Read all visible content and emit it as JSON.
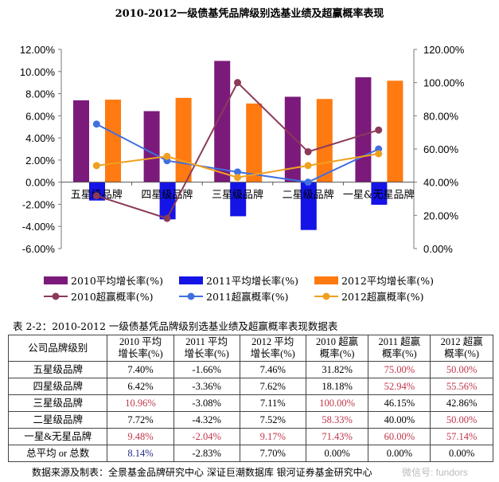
{
  "chart_data": {
    "type": "bar",
    "title": "2010-2012一级债基凭品牌级别选基业绩及超赢概率表现",
    "categories": [
      "五星级品牌",
      "四星级品牌",
      "三星级品牌",
      "二星级品牌",
      "一星&无星品牌"
    ],
    "left_axis": {
      "ylim": [
        -6,
        12
      ],
      "ticks": [
        "12.00%",
        "10.00%",
        "8.00%",
        "6.00%",
        "4.00%",
        "2.00%",
        "0.00%",
        "-2.00%",
        "-4.00%",
        "-6.00%"
      ]
    },
    "right_axis": {
      "ylim": [
        0,
        120
      ],
      "ticks": [
        "120.00%",
        "100.00%",
        "80.00%",
        "60.00%",
        "40.00%",
        "20.00%",
        "0.00%"
      ]
    },
    "bar_series": [
      {
        "name": "2010平均增长率(%)",
        "color": "#7b1a7b",
        "values": [
          7.4,
          6.42,
          10.96,
          7.72,
          9.48
        ]
      },
      {
        "name": "2011平均增长率(%)",
        "color": "#1414e6",
        "values": [
          -1.66,
          -3.36,
          -3.08,
          -4.32,
          -2.04
        ]
      },
      {
        "name": "2012平均增长率(%)",
        "color": "#ff7a10",
        "values": [
          7.46,
          7.62,
          7.11,
          7.52,
          9.17
        ]
      }
    ],
    "line_series": [
      {
        "name": "2010超赢概率(%)",
        "color": "#8b3a5a",
        "values": [
          31.82,
          18.18,
          100.0,
          58.33,
          71.43
        ]
      },
      {
        "name": "2011超赢概率(%)",
        "color": "#4070e0",
        "values": [
          75.0,
          52.94,
          46.15,
          40.0,
          60.0
        ]
      },
      {
        "name": "2012超赢概率(%)",
        "color": "#f0a020",
        "values": [
          50.0,
          55.56,
          42.86,
          50.0,
          57.14
        ]
      }
    ],
    "grid": false,
    "legend": "bottom"
  },
  "table": {
    "caption": "表 2-2：2010-2012 一级债基凭品牌级别选基业绩及超赢概率表现数据表",
    "headers": [
      [
        "公司品牌级别",
        ""
      ],
      [
        "2010 平均",
        "增长率(%)"
      ],
      [
        "2011 平均",
        "增长率(%)"
      ],
      [
        "2012 平均",
        "增长率(%)"
      ],
      [
        "2010 超赢",
        "概率(%)"
      ],
      [
        "2011 超赢",
        "概率(%)"
      ],
      [
        "2012 超赢",
        "概率(%)"
      ]
    ],
    "rows": [
      [
        "五星级品牌",
        "7.40%",
        "-1.66%",
        "7.46%",
        "31.82%",
        "75.00%",
        "50.00%"
      ],
      [
        "四星级品牌",
        "6.42%",
        "-3.36%",
        "7.62%",
        "18.18%",
        "52.94%",
        "55.56%"
      ],
      [
        "三星级品牌",
        "10.96%",
        "-3.08%",
        "7.11%",
        "100.00%",
        "46.15%",
        "42.86%"
      ],
      [
        "二星级品牌",
        "7.72%",
        "-4.32%",
        "7.52%",
        "58.33%",
        "40.00%",
        "50.00%"
      ],
      [
        "一星&无星品牌",
        "9.48%",
        "-2.04%",
        "9.17%",
        "71.43%",
        "60.00%",
        "57.14%"
      ],
      [
        "总平均 or 总数",
        "8.14%",
        "-2.83%",
        "7.70%",
        "0.00%",
        "0.00%",
        "0.00%"
      ]
    ],
    "highlight": [
      [
        0,
        0,
        0,
        0,
        0,
        1,
        1
      ],
      [
        0,
        0,
        0,
        0,
        0,
        1,
        1
      ],
      [
        0,
        1,
        0,
        0,
        1,
        0,
        0
      ],
      [
        0,
        0,
        0,
        0,
        1,
        0,
        1
      ],
      [
        0,
        1,
        1,
        1,
        1,
        1,
        1
      ],
      [
        0,
        2,
        0,
        0,
        0,
        0,
        0
      ]
    ],
    "highlight_colors": {
      "1": "#c0364a",
      "2": "#2a2a8a"
    }
  },
  "footer": "数据来源及制表：全景基金品牌研究中心  深证巨潮数据库  银河证券基金研究中心",
  "watermark": "微信号: fundors"
}
